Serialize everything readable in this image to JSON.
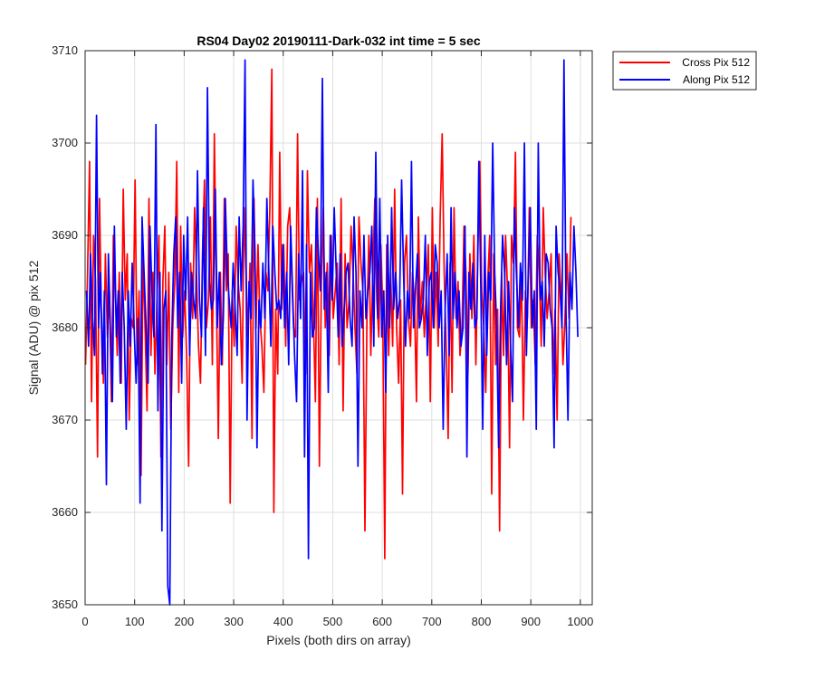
{
  "chart_data": {
    "type": "line",
    "title": "RS04 Day02 20190111-Dark-032 int time = 5 sec",
    "xlabel": "Pixels (both dirs on array)",
    "ylabel": "Signal (ADU) @ pix 512",
    "xlim": [
      0,
      1024
    ],
    "ylim": [
      3650,
      3710
    ],
    "xticks": [
      0,
      100,
      200,
      300,
      400,
      500,
      600,
      700,
      800,
      900,
      1000
    ],
    "yticks": [
      3650,
      3660,
      3670,
      3680,
      3690,
      3700,
      3710
    ],
    "grid": true,
    "legend_position": "outside-top-right",
    "series": [
      {
        "name": "Cross Pix 512",
        "color": "#ff0000",
        "x_start": 1,
        "x_step": 4,
        "values": [
          3676,
          3686,
          3698,
          3672,
          3690,
          3685,
          3666,
          3694,
          3681,
          3674,
          3688,
          3679,
          3684,
          3672,
          3690,
          3684,
          3677,
          3686,
          3674,
          3695,
          3683,
          3688,
          3670,
          3681,
          3680,
          3696,
          3676,
          3684,
          3664,
          3688,
          3680,
          3671,
          3694,
          3677,
          3686,
          3675,
          3683,
          3690,
          3666,
          3685,
          3691,
          3676,
          3686,
          3669,
          3680,
          3685,
          3698,
          3673,
          3691,
          3679,
          3684,
          3677,
          3665,
          3687,
          3681,
          3693,
          3686,
          3678,
          3674,
          3688,
          3696,
          3680,
          3683,
          3692,
          3676,
          3701,
          3684,
          3668,
          3686,
          3676,
          3694,
          3684,
          3688,
          3661,
          3684,
          3678,
          3691,
          3685,
          3682,
          3674,
          3693,
          3686,
          3679,
          3687,
          3668,
          3694,
          3680,
          3689,
          3681,
          3678,
          3673,
          3686,
          3684,
          3693,
          3708,
          3660,
          3682,
          3675,
          3699,
          3682,
          3689,
          3678,
          3691,
          3693,
          3686,
          3680,
          3679,
          3701,
          3683,
          3685,
          3686,
          3675,
          3697,
          3686,
          3689,
          3681,
          3672,
          3694,
          3665,
          3685,
          3693,
          3680,
          3687,
          3677,
          3690,
          3681,
          3684,
          3687,
          3676,
          3694,
          3671,
          3688,
          3680,
          3683,
          3691,
          3686,
          3680,
          3675,
          3692,
          3687,
          3684,
          3658,
          3681,
          3690,
          3677,
          3686,
          3694,
          3683,
          3679,
          3689,
          3682,
          3655,
          3689,
          3677,
          3686,
          3678,
          3695,
          3680,
          3674,
          3683,
          3662,
          3687,
          3690,
          3681,
          3678,
          3686,
          3683,
          3672,
          3692,
          3681,
          3685,
          3679,
          3684,
          3689,
          3672,
          3693,
          3680,
          3686,
          3678,
          3692,
          3701,
          3686,
          3678,
          3668,
          3687,
          3673,
          3693,
          3681,
          3685,
          3677,
          3680,
          3691,
          3686,
          3675,
          3688,
          3681,
          3690,
          3676,
          3688,
          3698,
          3684,
          3680,
          3673,
          3685,
          3690,
          3662,
          3688,
          3676,
          3682,
          3658,
          3686,
          3677,
          3690,
          3684,
          3667,
          3690,
          3687,
          3699,
          3680,
          3679,
          3686,
          3670,
          3684,
          3681,
          3693,
          3680,
          3683,
          3676,
          3690,
          3686,
          3678,
          3693,
          3686,
          3681,
          3684,
          3688,
          3675,
          3682,
          3670,
          3688,
          3684,
          3676,
          3681,
          3688,
          3681,
          3692
        ]
      },
      {
        "name": "Along Pix 512",
        "color": "#0000ff",
        "x_start": 3,
        "x_step": 4,
        "values": [
          3684,
          3678,
          3688,
          3681,
          3677,
          3703,
          3680,
          3686,
          3675,
          3684,
          3663,
          3688,
          3680,
          3672,
          3691,
          3679,
          3684,
          3674,
          3686,
          3680,
          3669,
          3684,
          3678,
          3687,
          3680,
          3674,
          3681,
          3661,
          3692,
          3686,
          3680,
          3674,
          3691,
          3684,
          3679,
          3702,
          3671,
          3686,
          3658,
          3682,
          3684,
          3652,
          3650,
          3679,
          3688,
          3692,
          3680,
          3686,
          3674,
          3690,
          3683,
          3692,
          3677,
          3686,
          3683,
          3681,
          3697,
          3683,
          3679,
          3693,
          3677,
          3706,
          3685,
          3682,
          3683,
          3695,
          3680,
          3686,
          3676,
          3681,
          3694,
          3686,
          3683,
          3680,
          3687,
          3682,
          3677,
          3692,
          3684,
          3691,
          3709,
          3670,
          3685,
          3681,
          3696,
          3688,
          3667,
          3683,
          3680,
          3687,
          3681,
          3694,
          3686,
          3678,
          3691,
          3686,
          3682,
          3683,
          3681,
          3689,
          3680,
          3686,
          3676,
          3691,
          3684,
          3677,
          3672,
          3688,
          3681,
          3697,
          3666,
          3689,
          3655,
          3686,
          3679,
          3680,
          3693,
          3688,
          3684,
          3707,
          3682,
          3686,
          3673,
          3690,
          3683,
          3693,
          3686,
          3679,
          3688,
          3678,
          3682,
          3686,
          3687,
          3681,
          3678,
          3692,
          3686,
          3665,
          3684,
          3680,
          3690,
          3681,
          3684,
          3686,
          3691,
          3678,
          3699,
          3681,
          3694,
          3679,
          3684,
          3673,
          3690,
          3680,
          3693,
          3682,
          3686,
          3681,
          3683,
          3696,
          3686,
          3678,
          3684,
          3681,
          3698,
          3680,
          3684,
          3688,
          3680,
          3681,
          3683,
          3690,
          3677,
          3685,
          3686,
          3680,
          3689,
          3687,
          3680,
          3684,
          3669,
          3682,
          3688,
          3677,
          3693,
          3681,
          3686,
          3680,
          3684,
          3678,
          3680,
          3691,
          3666,
          3686,
          3682,
          3687,
          3680,
          3681,
          3698,
          3684,
          3669,
          3690,
          3677,
          3686,
          3683,
          3700,
          3686,
          3680,
          3667,
          3682,
          3690,
          3686,
          3676,
          3685,
          3678,
          3672,
          3693,
          3686,
          3680,
          3687,
          3683,
          3700,
          3677,
          3686,
          3693,
          3680,
          3684,
          3669,
          3700,
          3683,
          3685,
          3678,
          3688,
          3687,
          3682,
          3680,
          3667,
          3691,
          3686,
          3684,
          3680,
          3709,
          3682,
          3670,
          3686,
          3682,
          3691,
          3686,
          3679
        ]
      }
    ]
  }
}
